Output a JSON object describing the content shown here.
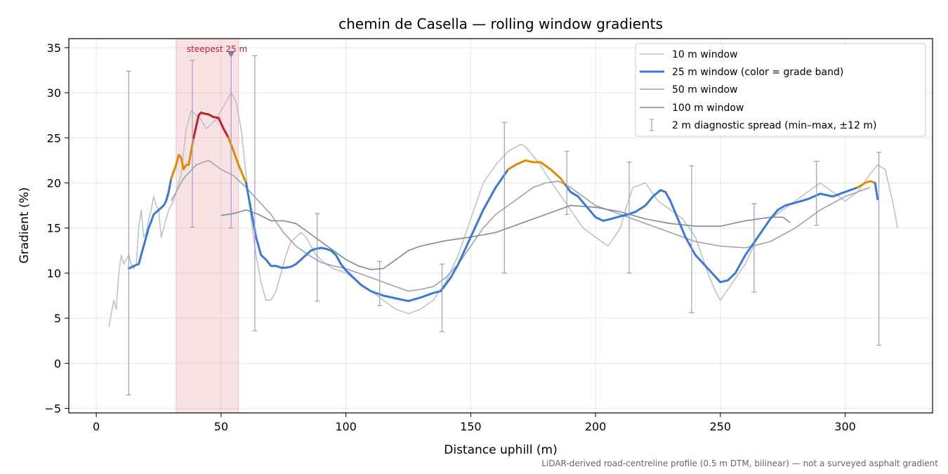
{
  "chart_data": {
    "type": "line",
    "title": "chemin de Casella — rolling window gradients",
    "xlabel": "Distance uphill (m)",
    "ylabel": "Gradient (%)",
    "xlim": [
      -11,
      335
    ],
    "ylim": [
      -5.5,
      36
    ],
    "xticks": [
      0,
      50,
      100,
      150,
      200,
      250,
      300
    ],
    "yticks": [
      -5,
      0,
      5,
      10,
      15,
      20,
      25,
      30,
      35
    ],
    "grid": true,
    "legend_position": "top-right",
    "footnote": "LiDAR-derived road-centreline profile (0.5 m DTM, bilinear) — not a surveyed asphalt gradient",
    "highlight": {
      "x0": 32,
      "x1": 57,
      "label": "steepest 25 m",
      "marker_x": 54,
      "marker_y": 34.3
    },
    "colors": {
      "w10": "#b8bfcc",
      "w50": "#9aa3b2",
      "w100": "#808898",
      "band_blue": "#3c78d8",
      "band_orange": "#e08a00",
      "band_red": "#c41e2b",
      "errorbar": "#9c9cc4",
      "highlight": "#e8a4aa",
      "annot": "#c41e2b"
    },
    "series": [
      {
        "name": "10 m window",
        "x": [
          5,
          7,
          8,
          9,
          10,
          11,
          12,
          13,
          14,
          15,
          16,
          17,
          18,
          19,
          20,
          21,
          22,
          23,
          24,
          25,
          26,
          27,
          28,
          29,
          30,
          31,
          32,
          34,
          36,
          38,
          40,
          42,
          44,
          46,
          48,
          50,
          52,
          54,
          56,
          58,
          60,
          62,
          64,
          66,
          68,
          70,
          72,
          74,
          76,
          78,
          80,
          82,
          84,
          86,
          88,
          90,
          92,
          95,
          100,
          105,
          110,
          115,
          120,
          125,
          130,
          135,
          140,
          145,
          150,
          155,
          160,
          165,
          170,
          172,
          175,
          178,
          180,
          185,
          190,
          195,
          200,
          205,
          210,
          212,
          215,
          220,
          225,
          230,
          235,
          240,
          245,
          248,
          250,
          255,
          260,
          265,
          270,
          275,
          280,
          285,
          290,
          295,
          300,
          305,
          310,
          313,
          316,
          319,
          321
        ],
        "y": [
          4,
          7,
          6,
          10,
          12,
          11,
          11.5,
          12,
          11,
          10.5,
          11,
          15,
          17,
          14,
          14.5,
          16,
          17,
          18.5,
          17.5,
          17,
          14,
          15,
          16,
          17,
          17.5,
          18,
          19,
          21,
          26,
          28,
          27.5,
          27,
          26,
          26.5,
          27,
          28,
          29,
          30,
          29,
          26,
          21,
          16,
          12,
          9,
          7,
          7,
          8,
          10,
          12,
          13.5,
          14,
          14.5,
          14,
          13,
          12,
          11.5,
          11,
          10.5,
          10,
          9,
          8,
          7,
          6,
          5.5,
          6,
          7,
          9,
          12,
          16,
          20,
          22,
          23.5,
          24.3,
          24,
          23,
          22,
          21,
          19,
          17,
          15,
          14,
          13,
          15,
          17,
          19.5,
          20,
          18,
          17,
          16,
          14,
          10,
          8,
          7,
          9,
          11,
          14,
          16,
          17,
          18,
          19,
          20,
          19,
          18,
          19,
          21,
          22,
          21.5,
          18,
          15
        ]
      },
      {
        "name": "25 m window (color = grade band)",
        "x": [
          13,
          15,
          17,
          19,
          21,
          23,
          25,
          27,
          28,
          29,
          30,
          32,
          33,
          34,
          35,
          36,
          37,
          39,
          41,
          42,
          43,
          45,
          47,
          49,
          51,
          53,
          55,
          57,
          60,
          62,
          64,
          66,
          68,
          70,
          72,
          74,
          76,
          78,
          80,
          82,
          84,
          86,
          88,
          90,
          92,
          94,
          96,
          98,
          100,
          103,
          106,
          110,
          115,
          120,
          125,
          130,
          135,
          138,
          142,
          145,
          150,
          155,
          160,
          165,
          168,
          172,
          175,
          178,
          182,
          186,
          190,
          193,
          196,
          200,
          203,
          206,
          210,
          213,
          216,
          220,
          223,
          226,
          228,
          230,
          233,
          236,
          240,
          245,
          250,
          253,
          256,
          260,
          265,
          270,
          273,
          276,
          280,
          285,
          290,
          295,
          300,
          305,
          308,
          310,
          312,
          313
        ],
        "y": [
          10.5,
          10.8,
          11,
          13,
          15,
          16.5,
          17,
          17.5,
          18,
          19,
          20.5,
          22,
          23.1,
          22.8,
          21.5,
          22,
          22,
          25,
          27.5,
          27.8,
          27.7,
          27.6,
          27.3,
          27.2,
          26,
          25,
          23.5,
          22,
          20,
          17,
          14,
          12,
          11.5,
          10.8,
          10.8,
          10.6,
          10.6,
          10.7,
          11,
          11.5,
          12,
          12.5,
          12.7,
          12.8,
          12.7,
          12.5,
          12,
          11,
          10.3,
          9.5,
          8.7,
          8,
          7.5,
          7.2,
          6.9,
          7.3,
          7.8,
          8,
          9.5,
          11,
          14,
          17,
          19.5,
          21.5,
          22,
          22.5,
          22.3,
          22.3,
          21.5,
          20.5,
          19,
          18.5,
          17.5,
          16.2,
          15.8,
          16,
          16.3,
          16.5,
          16.8,
          17.5,
          18.5,
          19.2,
          19,
          18,
          16,
          14,
          12,
          10.5,
          9,
          9.2,
          10,
          12,
          14,
          16,
          17,
          17.5,
          17.8,
          18.2,
          18.8,
          18.5,
          19,
          19.5,
          20,
          20.2,
          20,
          18.2
        ]
      },
      {
        "name": "50 m window",
        "x": [
          30,
          35,
          40,
          45,
          50,
          55,
          60,
          65,
          70,
          75,
          80,
          85,
          90,
          95,
          100,
          105,
          110,
          115,
          120,
          125,
          130,
          135,
          140,
          145,
          150,
          155,
          160,
          165,
          170,
          175,
          180,
          185,
          190,
          195,
          200,
          210,
          220,
          230,
          240,
          250,
          260,
          270,
          280,
          290,
          300,
          305,
          310
        ],
        "y": [
          18,
          20.5,
          22,
          22.5,
          21.5,
          20.8,
          19.5,
          18,
          16.5,
          14.5,
          13,
          12,
          11.2,
          10.8,
          10.5,
          10,
          9.5,
          9,
          8.5,
          8,
          8.2,
          8.5,
          9.5,
          11,
          13,
          15,
          16.5,
          17.5,
          18.5,
          19.5,
          20,
          20.2,
          19.5,
          18.5,
          17.5,
          16.5,
          15.5,
          14.5,
          13.5,
          13,
          12.8,
          13.5,
          15,
          17,
          18.5,
          19,
          19.5
        ]
      },
      {
        "name": "100 m window",
        "x": [
          50,
          55,
          60,
          65,
          70,
          75,
          80,
          85,
          90,
          95,
          100,
          105,
          110,
          115,
          120,
          125,
          130,
          135,
          140,
          150,
          160,
          170,
          180,
          190,
          200,
          210,
          220,
          230,
          240,
          250,
          260,
          270,
          275,
          278
        ],
        "y": [
          16.4,
          16.6,
          17,
          16.5,
          15.8,
          15.8,
          15.5,
          14.5,
          13.5,
          12.5,
          11.5,
          10.8,
          10.4,
          10.5,
          11.5,
          12.5,
          13,
          13.3,
          13.6,
          14,
          14.5,
          15.5,
          16.5,
          17.5,
          17.3,
          16.8,
          16,
          15.5,
          15.2,
          15.2,
          15.8,
          16.2,
          16.2,
          15.6
        ]
      }
    ],
    "band_segments": [
      {
        "band": "blue",
        "from": 13,
        "to": 30
      },
      {
        "band": "orange",
        "from": 30,
        "to": 39
      },
      {
        "band": "red",
        "from": 39,
        "to": 53
      },
      {
        "band": "orange",
        "from": 53,
        "to": 60
      },
      {
        "band": "blue",
        "from": 60,
        "to": 165
      },
      {
        "band": "orange",
        "from": 165,
        "to": 188
      },
      {
        "band": "blue",
        "from": 188,
        "to": 305
      },
      {
        "band": "orange",
        "from": 305,
        "to": 312
      },
      {
        "band": "blue",
        "from": 312,
        "to": 313
      }
    ],
    "error_bars": {
      "name": "2 m diagnostic spread (min–max, ±12 m)",
      "points": [
        {
          "x": 13,
          "low": -3.5,
          "high": 32.4
        },
        {
          "x": 38.5,
          "low": 15.1,
          "high": 33.6
        },
        {
          "x": 54,
          "low": 15,
          "high": 34.2
        },
        {
          "x": 63.5,
          "low": 3.6,
          "high": 34.1
        },
        {
          "x": 88.5,
          "low": 6.9,
          "high": 16.6
        },
        {
          "x": 113.5,
          "low": 6.4,
          "high": 11.3
        },
        {
          "x": 138.5,
          "low": 3.5,
          "high": 11
        },
        {
          "x": 163.5,
          "low": 10,
          "high": 26.7
        },
        {
          "x": 188.5,
          "low": 16.5,
          "high": 23.5
        },
        {
          "x": 213.5,
          "low": 10,
          "high": 22.3
        },
        {
          "x": 238.5,
          "low": 5.6,
          "high": 21.9
        },
        {
          "x": 263.5,
          "low": 7.9,
          "high": 17.7
        },
        {
          "x": 288.5,
          "low": 15.3,
          "high": 22.4
        },
        {
          "x": 313.5,
          "low": 2,
          "high": 23.4
        }
      ]
    }
  }
}
